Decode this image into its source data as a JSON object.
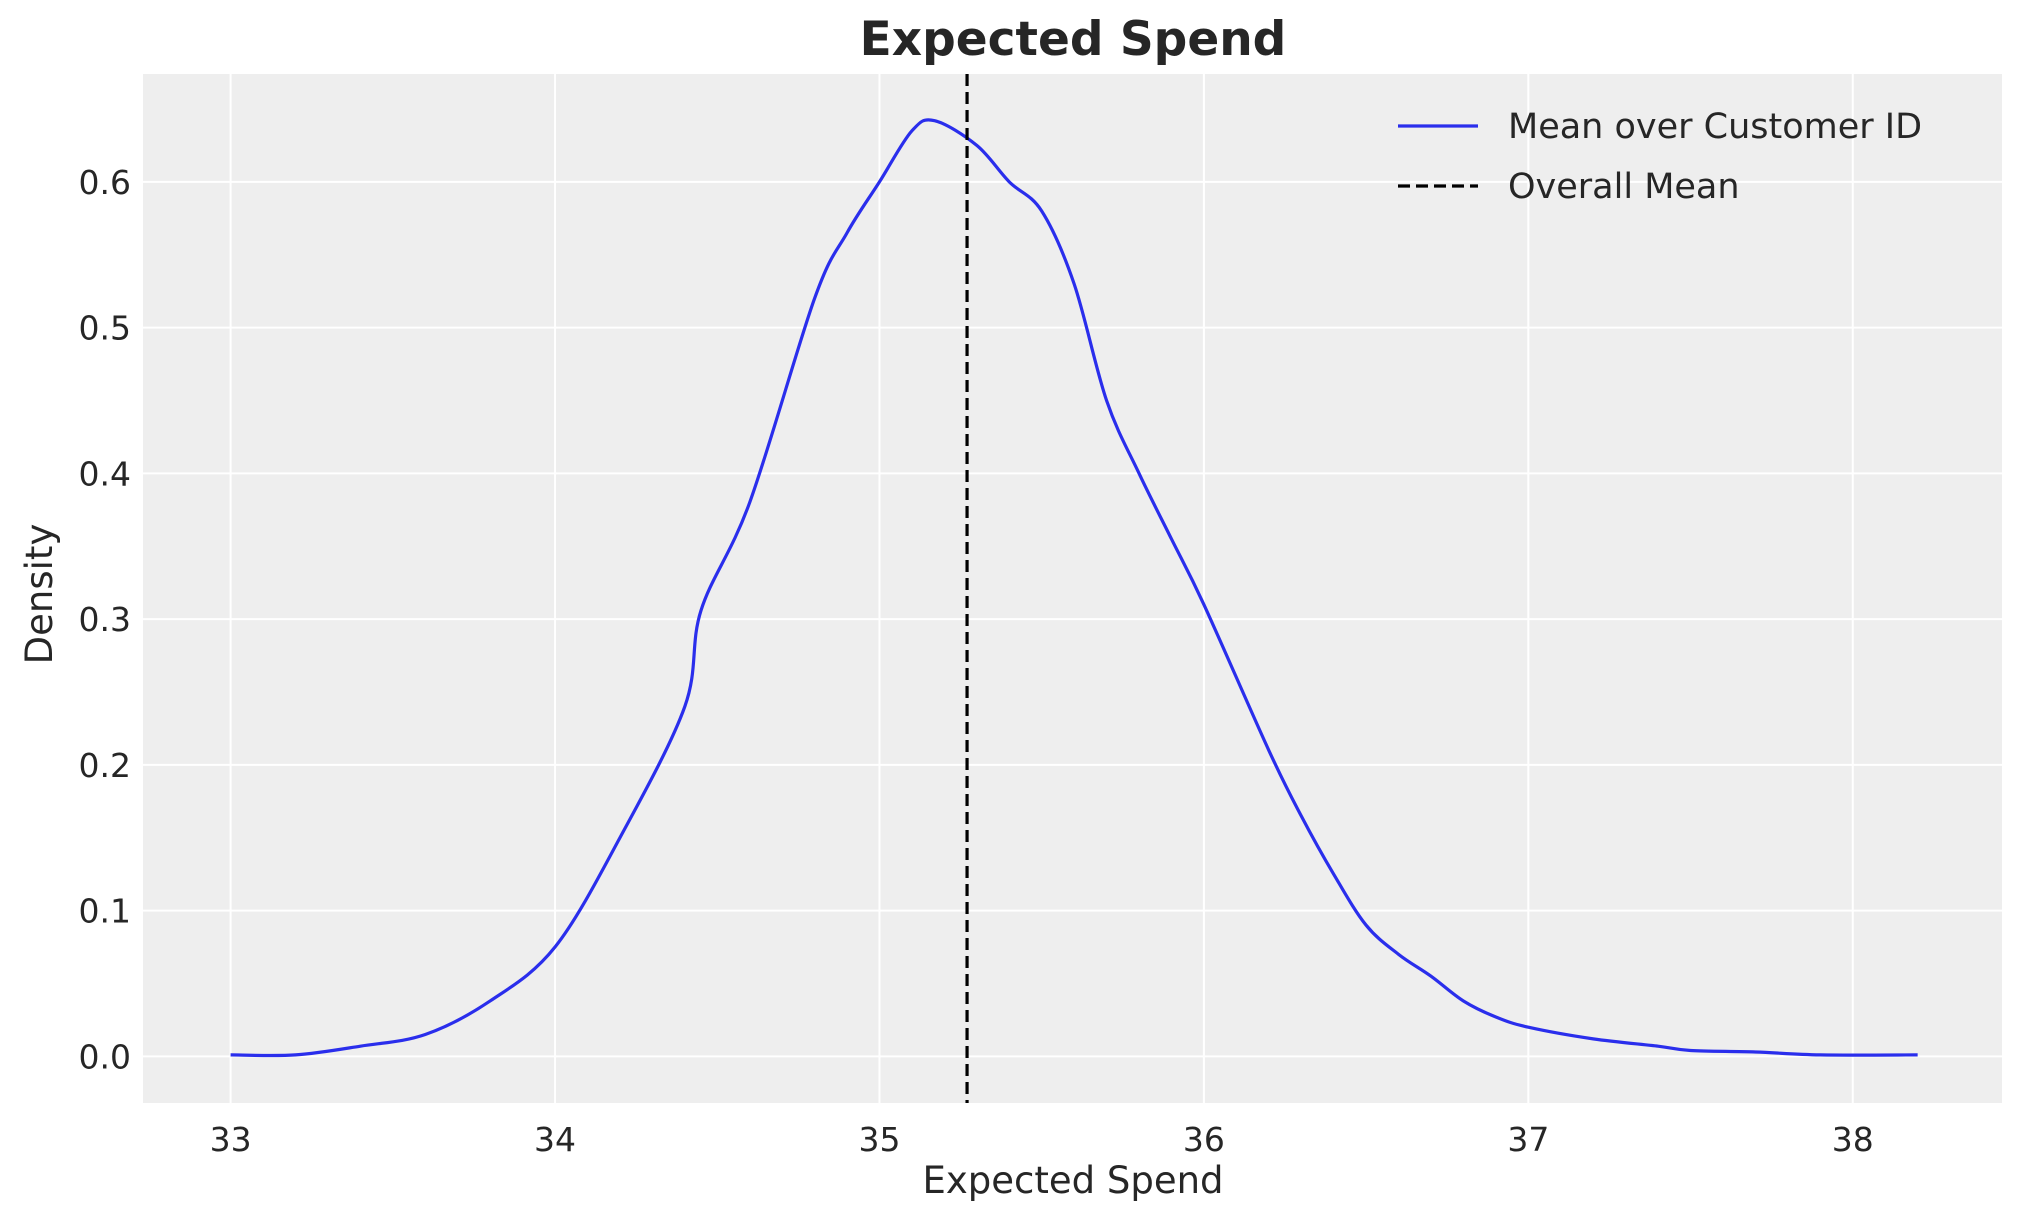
{
  "chart_data": {
    "type": "line",
    "title": "Expected Spend",
    "xlabel": "Expected Spend",
    "ylabel": "Density",
    "xlim": [
      32.73,
      38.46
    ],
    "ylim": [
      -0.032,
      0.674
    ],
    "xticks": [
      33,
      34,
      35,
      36,
      37,
      38
    ],
    "yticks": [
      0.0,
      0.1,
      0.2,
      0.3,
      0.4,
      0.5,
      0.6
    ],
    "ytick_labels": [
      "0.0",
      "0.1",
      "0.2",
      "0.3",
      "0.4",
      "0.5",
      "0.6"
    ],
    "grid": true,
    "background": "#eeeeee",
    "legend_placement": "top-right",
    "series": [
      {
        "name": "Mean over Customer ID",
        "color": "#2a2eec",
        "style": "solid",
        "x": [
          33.0,
          33.2,
          33.4,
          33.6,
          33.8,
          34.0,
          34.2,
          34.4,
          34.45,
          34.6,
          34.8,
          34.9,
          35.0,
          35.1,
          35.17,
          35.3,
          35.4,
          35.5,
          35.6,
          35.7,
          35.8,
          35.9,
          36.0,
          36.2,
          36.3,
          36.4,
          36.5,
          36.6,
          36.7,
          36.8,
          36.9,
          37.0,
          37.2,
          37.4,
          37.5,
          37.7,
          37.9,
          38.2
        ],
        "y": [
          0.001,
          0.001,
          0.007,
          0.015,
          0.038,
          0.075,
          0.15,
          0.24,
          0.306,
          0.38,
          0.52,
          0.565,
          0.6,
          0.635,
          0.642,
          0.625,
          0.6,
          0.58,
          0.53,
          0.45,
          0.4,
          0.355,
          0.31,
          0.21,
          0.165,
          0.125,
          0.09,
          0.07,
          0.055,
          0.038,
          0.027,
          0.02,
          0.012,
          0.007,
          0.004,
          0.003,
          0.001,
          0.001
        ]
      }
    ],
    "vlines": [
      {
        "name": "Overall Mean",
        "x": 35.27,
        "color": "#000000",
        "style": "dashed"
      }
    ]
  }
}
